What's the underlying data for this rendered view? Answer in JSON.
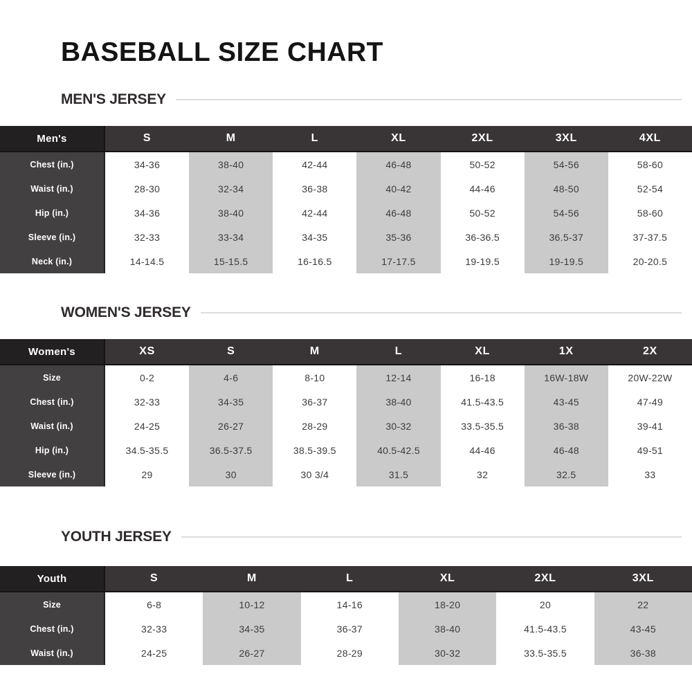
{
  "page": {
    "title": "BASEBALL SIZE CHART"
  },
  "colors": {
    "header_bg": "#393536",
    "corner_bg": "#232021",
    "label_bg": "#434041",
    "shaded_column_bg": "#cbcacb",
    "divider_line": "#dcdcdc",
    "text_dark": "#3c3c3c"
  },
  "tables": [
    {
      "section_title": "MEN'S JERSEY",
      "corner_label": "Men's",
      "columns": [
        "S",
        "M",
        "L",
        "XL",
        "2XL",
        "3XL",
        "4XL"
      ],
      "shaded_columns": [
        1,
        3,
        5
      ],
      "rows": [
        {
          "label": "Chest (in.)",
          "values": [
            "34-36",
            "38-40",
            "42-44",
            "46-48",
            "50-52",
            "54-56",
            "58-60"
          ]
        },
        {
          "label": "Waist (in.)",
          "values": [
            "28-30",
            "32-34",
            "36-38",
            "40-42",
            "44-46",
            "48-50",
            "52-54"
          ]
        },
        {
          "label": "Hip (in.)",
          "values": [
            "34-36",
            "38-40",
            "42-44",
            "46-48",
            "50-52",
            "54-56",
            "58-60"
          ]
        },
        {
          "label": "Sleeve (in.)",
          "values": [
            "32-33",
            "33-34",
            "34-35",
            "35-36",
            "36-36.5",
            "36.5-37",
            "37-37.5"
          ]
        },
        {
          "label": "Neck (in.)",
          "values": [
            "14-14.5",
            "15-15.5",
            "16-16.5",
            "17-17.5",
            "19-19.5",
            "19-19.5",
            "20-20.5"
          ]
        }
      ]
    },
    {
      "section_title": "WOMEN'S JERSEY",
      "corner_label": "Women's",
      "columns": [
        "XS",
        "S",
        "M",
        "L",
        "XL",
        "1X",
        "2X"
      ],
      "shaded_columns": [
        1,
        3,
        5
      ],
      "rows": [
        {
          "label": "Size",
          "values": [
            "0-2",
            "4-6",
            "8-10",
            "12-14",
            "16-18",
            "16W-18W",
            "20W-22W"
          ]
        },
        {
          "label": "Chest (in.)",
          "values": [
            "32-33",
            "34-35",
            "36-37",
            "38-40",
            "41.5-43.5",
            "43-45",
            "47-49"
          ]
        },
        {
          "label": "Waist (in.)",
          "values": [
            "24-25",
            "26-27",
            "28-29",
            "30-32",
            "33.5-35.5",
            "36-38",
            "39-41"
          ]
        },
        {
          "label": "Hip (in.)",
          "values": [
            "34.5-35.5",
            "36.5-37.5",
            "38.5-39.5",
            "40.5-42.5",
            "44-46",
            "46-48",
            "49-51"
          ]
        },
        {
          "label": "Sleeve (in.)",
          "values": [
            "29",
            "30",
            "30 3/4",
            "31.5",
            "32",
            "32.5",
            "33"
          ]
        }
      ]
    },
    {
      "section_title": "YOUTH JERSEY",
      "corner_label": "Youth",
      "columns": [
        "S",
        "M",
        "L",
        "XL",
        "2XL",
        "3XL"
      ],
      "shaded_columns": [
        1,
        3,
        5
      ],
      "rows": [
        {
          "label": "Size",
          "values": [
            "6-8",
            "10-12",
            "14-16",
            "18-20",
            "20",
            "22"
          ]
        },
        {
          "label": "Chest (in.)",
          "values": [
            "32-33",
            "34-35",
            "36-37",
            "38-40",
            "41.5-43.5",
            "43-45"
          ]
        },
        {
          "label": "Waist (in.)",
          "values": [
            "24-25",
            "26-27",
            "28-29",
            "30-32",
            "33.5-35.5",
            "36-38"
          ]
        }
      ]
    }
  ]
}
